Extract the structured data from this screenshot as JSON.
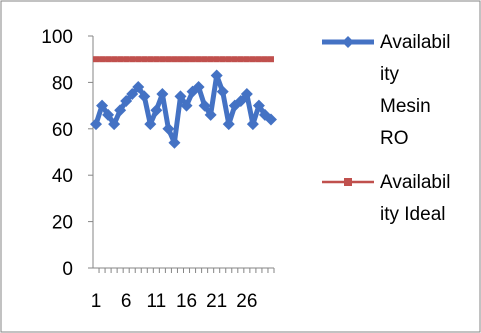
{
  "chart_data": {
    "type": "line",
    "title": "",
    "xlabel": "",
    "ylabel": "",
    "ylim": [
      0,
      100
    ],
    "yticks": [
      "0",
      "20",
      "40",
      "60",
      "80",
      "100"
    ],
    "x": [
      1,
      2,
      3,
      4,
      5,
      6,
      7,
      8,
      9,
      10,
      11,
      12,
      13,
      14,
      15,
      16,
      17,
      18,
      19,
      20,
      21,
      22,
      23,
      24,
      25,
      26,
      27,
      28,
      29,
      30
    ],
    "xtick_labels": [
      "1",
      "6",
      "11",
      "16",
      "21",
      "26"
    ],
    "xtick_at": [
      1,
      6,
      11,
      16,
      21,
      26
    ],
    "legend_position": "right",
    "grid": false,
    "series": [
      {
        "name": "Availability Mesin RO",
        "legend_lines": [
          "Availabil",
          "ity",
          "Mesin",
          "RO"
        ],
        "color": "#4472C4",
        "marker": "diamond",
        "values": [
          62,
          70,
          66,
          62,
          68,
          72,
          75,
          78,
          74,
          62,
          68,
          75,
          60,
          54,
          74,
          70,
          76,
          78,
          70,
          66,
          83,
          76,
          62,
          70,
          72,
          75,
          62,
          70,
          66,
          64
        ]
      },
      {
        "name": "Availability Ideal",
        "legend_lines": [
          "Availabil",
          "ity Ideal"
        ],
        "color": "#C0504D",
        "marker": "square",
        "values": [
          90,
          90,
          90,
          90,
          90,
          90,
          90,
          90,
          90,
          90,
          90,
          90,
          90,
          90,
          90,
          90,
          90,
          90,
          90,
          90,
          90,
          90,
          90,
          90,
          90,
          90,
          90,
          90,
          90,
          90
        ]
      }
    ]
  }
}
